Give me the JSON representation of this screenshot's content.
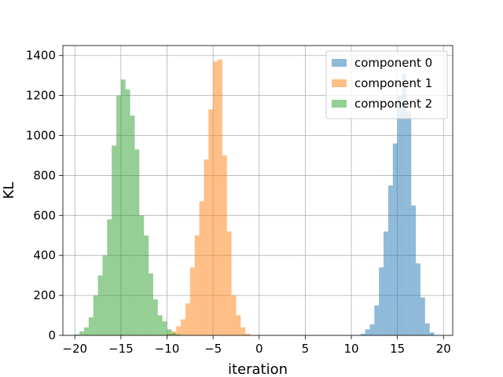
{
  "chart_data": {
    "type": "bar",
    "subtype": "overlapping-histogram",
    "title": "",
    "xlabel": "iteration",
    "ylabel": "KL",
    "xlim": [
      -21.3,
      21.0
    ],
    "ylim": [
      0,
      1450
    ],
    "x_ticks": [
      -20,
      -15,
      -10,
      -5,
      0,
      5,
      10,
      15,
      20
    ],
    "y_ticks": [
      0,
      200,
      400,
      600,
      800,
      1000,
      1200,
      1400
    ],
    "grid": true,
    "legend_position": "top-right",
    "series": [
      {
        "name": "component 0",
        "color": "#1f77b4",
        "alpha": 0.5,
        "bins_left": [
          11.0,
          11.5,
          12.0,
          12.5,
          13.0,
          13.5,
          14.0,
          14.5,
          15.0,
          15.5,
          16.0,
          16.5,
          17.0,
          17.5,
          18.0,
          18.5
        ],
        "bin_width": 0.5,
        "counts": [
          8,
          30,
          55,
          150,
          340,
          520,
          750,
          960,
          1200,
          1310,
          1120,
          650,
          360,
          190,
          60,
          15
        ]
      },
      {
        "name": "component 1",
        "color": "#ff7f0e",
        "alpha": 0.5,
        "bins_left": [
          -10.0,
          -9.5,
          -9.0,
          -8.5,
          -8.0,
          -7.5,
          -7.0,
          -6.5,
          -6.0,
          -5.5,
          -5.0,
          -4.5,
          -4.0,
          -3.5,
          -3.0,
          -2.5,
          -2.0,
          -1.5
        ],
        "bin_width": 0.5,
        "counts": [
          8,
          20,
          45,
          80,
          160,
          340,
          500,
          670,
          880,
          1130,
          1370,
          1380,
          900,
          520,
          200,
          100,
          40,
          8
        ]
      },
      {
        "name": "component 2",
        "color": "#2ca02c",
        "alpha": 0.5,
        "bins_left": [
          -20.0,
          -19.5,
          -19.0,
          -18.5,
          -18.0,
          -17.5,
          -17.0,
          -16.5,
          -16.0,
          -15.5,
          -15.0,
          -14.5,
          -14.0,
          -13.5,
          -13.0,
          -12.5,
          -12.0,
          -11.5,
          -11.0,
          -10.5,
          -10.0,
          -9.5,
          -9.0
        ],
        "bin_width": 0.5,
        "counts": [
          5,
          20,
          40,
          90,
          200,
          300,
          400,
          580,
          950,
          1200,
          1280,
          1230,
          1100,
          930,
          600,
          500,
          310,
          180,
          100,
          70,
          30,
          12,
          5
        ]
      }
    ]
  }
}
